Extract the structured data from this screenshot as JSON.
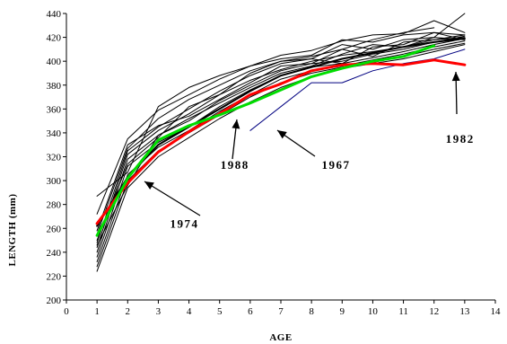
{
  "chart_data": {
    "type": "line",
    "xlabel": "AGE",
    "ylabel": "LENGTH (mm)",
    "xlim": [
      0,
      14
    ],
    "ylim": [
      200,
      440
    ],
    "x_ticks": [
      0,
      1,
      2,
      3,
      4,
      5,
      6,
      7,
      8,
      9,
      10,
      11,
      12,
      13,
      14
    ],
    "y_ticks": [
      200,
      220,
      240,
      260,
      280,
      300,
      320,
      340,
      360,
      380,
      400,
      420,
      440
    ],
    "grid": false,
    "legend": "none",
    "colors": {
      "background_series": "#000000",
      "red": "#ff0000",
      "green": "#00dd00",
      "navy": "#000080"
    },
    "series": [
      {
        "color": "#000000",
        "width": 1,
        "x": [
          1,
          2,
          3,
          4,
          5,
          6,
          7,
          8,
          9,
          10,
          11,
          12,
          13
        ],
        "y": [
          287,
          307,
          362,
          378,
          388,
          396,
          405,
          409,
          417,
          422,
          423,
          434,
          424
        ]
      },
      {
        "color": "#000000",
        "width": 1,
        "x": [
          1,
          2,
          3,
          4,
          5,
          6,
          7,
          8,
          9,
          10,
          11,
          12,
          13
        ],
        "y": [
          272,
          335,
          359,
          372,
          385,
          396,
          402,
          405,
          418,
          416,
          422,
          424,
          422
        ]
      },
      {
        "color": "#000000",
        "width": 1,
        "x": [
          1,
          2,
          3,
          4,
          5,
          6,
          7,
          8,
          9,
          10,
          11,
          12
        ],
        "y": [
          255,
          327,
          352,
          368,
          380,
          392,
          400,
          404,
          410,
          418,
          424,
          428
        ]
      },
      {
        "color": "#000000",
        "width": 1,
        "x": [
          1,
          2,
          3,
          4,
          5,
          6,
          7,
          8,
          9,
          10,
          11,
          12,
          13
        ],
        "y": [
          248,
          325,
          345,
          360,
          375,
          388,
          398,
          402,
          414,
          410,
          418,
          420,
          440
        ]
      },
      {
        "color": "#000000",
        "width": 1,
        "x": [
          1,
          2,
          3,
          4,
          5,
          6,
          7,
          8,
          9,
          10,
          11,
          12,
          13
        ],
        "y": [
          244,
          322,
          342,
          356,
          372,
          384,
          393,
          400,
          405,
          408,
          412,
          420,
          418
        ]
      },
      {
        "color": "#000000",
        "width": 1,
        "x": [
          1,
          2,
          3,
          4,
          5,
          6,
          7,
          8,
          9,
          10,
          11,
          12,
          13
        ],
        "y": [
          240,
          318,
          338,
          350,
          367,
          380,
          392,
          398,
          400,
          406,
          410,
          416,
          421
        ]
      },
      {
        "color": "#000000",
        "width": 1,
        "x": [
          1,
          2,
          3,
          4,
          5,
          6,
          7,
          8,
          9,
          10,
          11,
          12,
          13
        ],
        "y": [
          236,
          312,
          332,
          345,
          362,
          376,
          388,
          395,
          398,
          403,
          408,
          414,
          419
        ]
      },
      {
        "color": "#000000",
        "width": 1,
        "x": [
          1,
          2,
          3,
          4,
          5,
          6,
          7,
          8,
          9,
          10,
          11,
          12,
          13
        ],
        "y": [
          232,
          305,
          328,
          342,
          358,
          372,
          385,
          392,
          396,
          401,
          406,
          412,
          417
        ]
      },
      {
        "color": "#000000",
        "width": 1,
        "x": [
          1,
          2,
          3,
          4,
          5,
          6,
          7,
          8,
          9,
          10,
          11,
          12,
          13
        ],
        "y": [
          228,
          300,
          325,
          340,
          355,
          370,
          382,
          390,
          395,
          399,
          404,
          410,
          415
        ]
      },
      {
        "color": "#000000",
        "width": 1,
        "x": [
          1,
          2,
          3,
          4,
          5,
          6,
          7,
          8,
          9,
          10,
          11,
          12,
          13
        ],
        "y": [
          224,
          294,
          320,
          336,
          352,
          366,
          378,
          387,
          394,
          398,
          402,
          408,
          414
        ]
      },
      {
        "color": "#000000",
        "width": 1,
        "x": [
          1,
          2,
          3,
          4,
          5,
          6,
          7,
          8,
          9,
          10,
          11,
          12,
          13
        ],
        "y": [
          258,
          330,
          346,
          354,
          368,
          382,
          396,
          398,
          410,
          404,
          416,
          418,
          420
        ]
      },
      {
        "color": "#000000",
        "width": 1,
        "x": [
          1,
          2,
          3,
          4,
          5,
          6,
          7,
          8,
          9,
          10,
          11,
          12,
          13
        ],
        "y": [
          250,
          314,
          336,
          362,
          372,
          390,
          400,
          402,
          398,
          412,
          414,
          424,
          418
        ]
      },
      {
        "color": "#000000",
        "width": 2,
        "x": [
          1,
          2,
          3,
          4,
          5,
          6,
          7,
          8,
          9,
          10,
          11,
          12,
          13
        ],
        "y": [
          262,
          303,
          330,
          345,
          360,
          375,
          388,
          395,
          402,
          407,
          412,
          416,
          419
        ]
      },
      {
        "color": "#000000",
        "width": 1,
        "x": [
          1,
          2,
          3,
          4,
          5,
          6,
          7,
          8,
          9,
          10,
          11,
          12,
          13
        ],
        "y": [
          246,
          296,
          338,
          352,
          365,
          378,
          390,
          396,
          406,
          414,
          412,
          418,
          422
        ]
      },
      {
        "color": "#000080",
        "width": 1,
        "x": [
          6,
          7,
          8,
          9,
          10,
          11,
          12,
          13
        ],
        "y": [
          342,
          362,
          382,
          382,
          392,
          398,
          402,
          410
        ]
      },
      {
        "color": "#ff0000",
        "width": 3,
        "x": [
          1,
          2,
          3,
          4,
          5,
          6,
          7,
          8,
          9,
          10,
          11,
          12,
          13
        ],
        "y": [
          264,
          298,
          324,
          341,
          356,
          372,
          381,
          392,
          397,
          398,
          397,
          401,
          397
        ]
      },
      {
        "color": "#00dd00",
        "width": 3,
        "x": [
          1,
          2,
          3,
          4,
          5,
          6,
          7,
          8,
          9,
          10,
          11,
          12
        ],
        "y": [
          254,
          302,
          334,
          346,
          355,
          365,
          376,
          387,
          394,
          400,
          404,
          413
        ]
      }
    ],
    "annotations": [
      {
        "label": "1974",
        "x": 3.85,
        "y": 260.5
      },
      {
        "label": "1988",
        "x": 5.5,
        "y": 310
      },
      {
        "label": "1967",
        "x": 8.8,
        "y": 310
      },
      {
        "label": "1982",
        "x": 12.85,
        "y": 331.5
      }
    ]
  }
}
